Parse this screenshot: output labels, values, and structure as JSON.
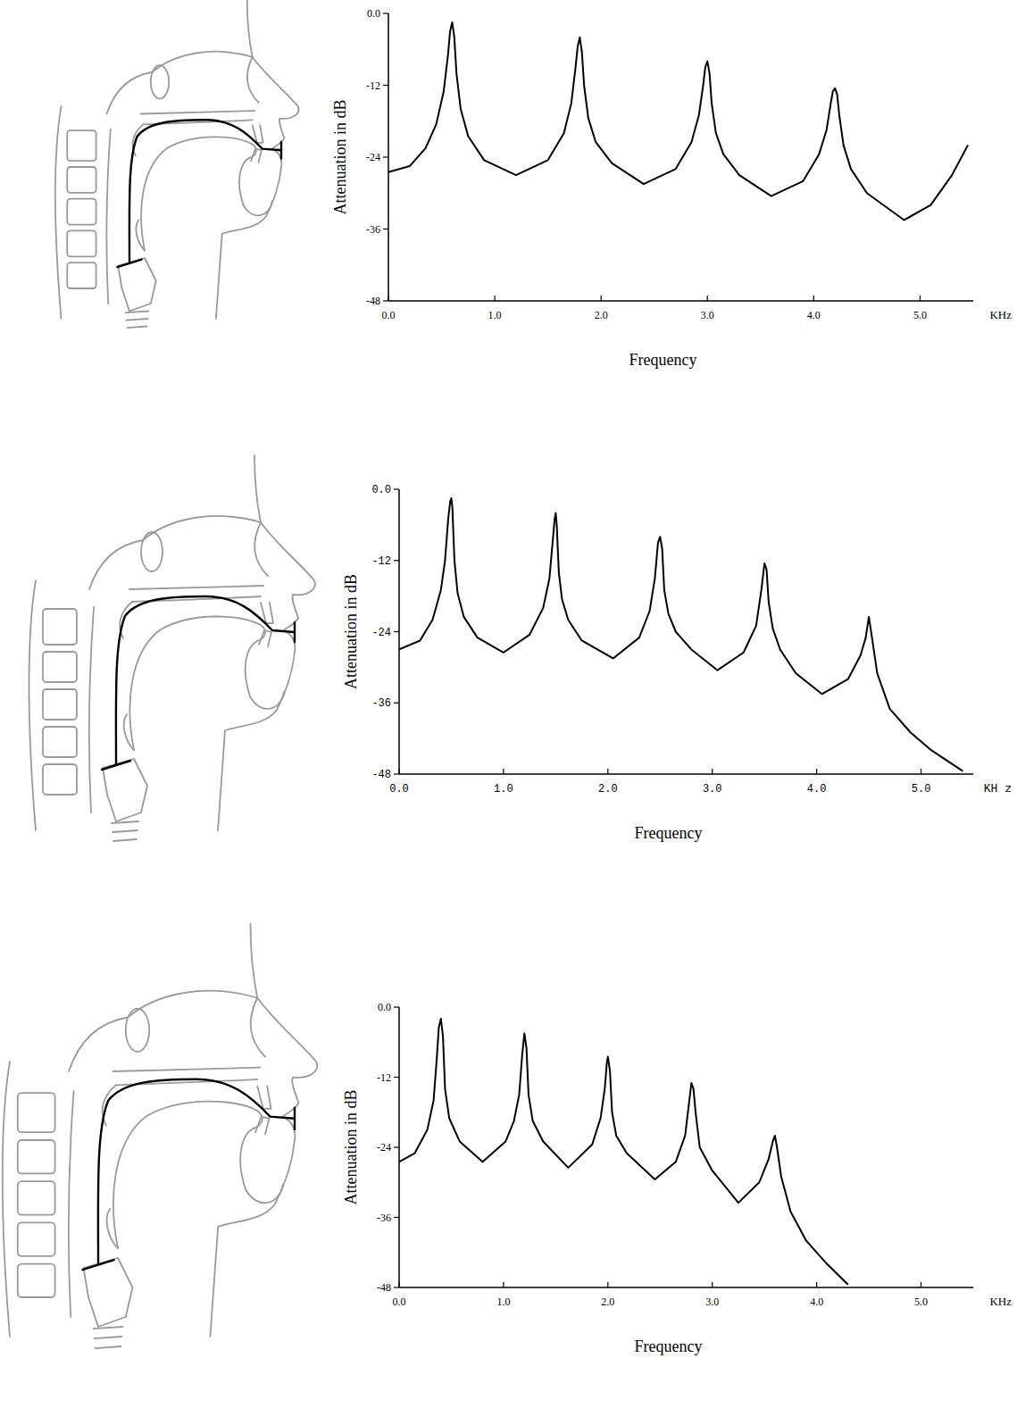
{
  "chart_data": [
    {
      "type": "line",
      "x_label": "Frequency",
      "y_label": "Attenuation in dB",
      "x_unit": "KHz",
      "xlim": [
        0,
        5.5
      ],
      "ylim": [
        -48,
        0
      ],
      "xticks": [
        {
          "value": 0,
          "label": "0.0"
        },
        {
          "value": 1,
          "label": "1.0"
        },
        {
          "value": 2,
          "label": "2.0"
        },
        {
          "value": 3,
          "label": "3.0"
        },
        {
          "value": 4,
          "label": "4.0"
        },
        {
          "value": 5,
          "label": "5.0"
        }
      ],
      "yticks": [
        {
          "value": 0,
          "label": "0.0"
        },
        -12,
        -24,
        -36,
        -48
      ],
      "x": [
        0,
        0.2,
        0.35,
        0.45,
        0.52,
        0.56,
        0.58,
        0.6,
        0.62,
        0.64,
        0.68,
        0.75,
        0.9,
        1.2,
        1.5,
        1.65,
        1.72,
        1.76,
        1.78,
        1.8,
        1.82,
        1.84,
        1.88,
        1.95,
        2.1,
        2.4,
        2.7,
        2.85,
        2.92,
        2.96,
        2.98,
        3.0,
        3.02,
        3.04,
        3.08,
        3.15,
        3.3,
        3.6,
        3.9,
        4.05,
        4.12,
        4.16,
        4.18,
        4.2,
        4.22,
        4.24,
        4.28,
        4.35,
        4.5,
        4.85,
        5.1,
        5.3,
        5.45
      ],
      "series": [
        {
          "color": "#000000",
          "values": [
            -26.5,
            -25.5,
            -22.5,
            -18.5,
            -13,
            -7,
            -3,
            -1.5,
            -4,
            -10,
            -16,
            -20.5,
            -24.5,
            -27,
            -24.5,
            -20,
            -15,
            -9,
            -5.5,
            -4,
            -6.5,
            -12,
            -17.5,
            -21.5,
            -25,
            -28.5,
            -26,
            -21.5,
            -17,
            -12,
            -9,
            -8,
            -10,
            -15,
            -20,
            -23.5,
            -27,
            -30.5,
            -28,
            -23.5,
            -19.5,
            -15,
            -13,
            -12.5,
            -13.5,
            -17,
            -22,
            -26,
            -30,
            -34.5,
            -32,
            -27,
            -22
          ]
        }
      ]
    },
    {
      "type": "line",
      "x_label": "Frequency",
      "y_label": "Attenuation in dB",
      "x_unit": "KH z",
      "xlim": [
        0,
        5.5
      ],
      "ylim": [
        -48,
        0
      ],
      "xticks": [
        {
          "value": 0,
          "label": "0.0"
        },
        {
          "value": 1,
          "label": "1.0"
        },
        {
          "value": 2,
          "label": "2.0"
        },
        {
          "value": 3,
          "label": "3.0"
        },
        {
          "value": 4,
          "label": "4.0"
        },
        {
          "value": 5,
          "label": "5.0"
        }
      ],
      "yticks": [
        {
          "value": 0,
          "label": "0.0"
        },
        -12,
        -24,
        -36,
        -48
      ],
      "x": [
        0,
        0.2,
        0.32,
        0.4,
        0.44,
        0.47,
        0.49,
        0.5,
        0.51,
        0.53,
        0.56,
        0.62,
        0.75,
        1.0,
        1.25,
        1.38,
        1.44,
        1.47,
        1.49,
        1.5,
        1.51,
        1.53,
        1.56,
        1.62,
        1.75,
        2.05,
        2.3,
        2.4,
        2.45,
        2.48,
        2.5,
        2.52,
        2.54,
        2.58,
        2.65,
        2.8,
        3.05,
        3.3,
        3.42,
        3.47,
        3.5,
        3.52,
        3.54,
        3.58,
        3.65,
        3.8,
        4.05,
        4.3,
        4.42,
        4.47,
        4.5,
        4.53,
        4.58,
        4.7,
        4.9,
        5.1,
        5.4
      ],
      "series": [
        {
          "color": "#000000",
          "values": [
            -27,
            -25.5,
            -22,
            -17,
            -12,
            -5,
            -2,
            -1.5,
            -3,
            -12,
            -17.5,
            -21.5,
            -25,
            -27.5,
            -24.5,
            -20,
            -15,
            -9,
            -5,
            -4,
            -6,
            -14,
            -18.5,
            -22,
            -25.5,
            -28.5,
            -25,
            -20.5,
            -15,
            -9,
            -8,
            -10,
            -17,
            -21,
            -24,
            -27,
            -30.5,
            -27.5,
            -23,
            -17,
            -12.5,
            -13.5,
            -19,
            -23.5,
            -27,
            -31,
            -34.5,
            -32,
            -28,
            -25,
            -21.5,
            -25,
            -31,
            -37,
            -41,
            -44,
            -47.5
          ]
        }
      ]
    },
    {
      "type": "line",
      "x_label": "Frequency",
      "y_label": "Attenuation in dB",
      "x_unit": "KHz",
      "xlim": [
        0,
        5.5
      ],
      "ylim": [
        -48,
        0
      ],
      "xticks": [
        {
          "value": 0,
          "label": "0.0"
        },
        {
          "value": 1,
          "label": "1.0"
        },
        {
          "value": 2,
          "label": "2.0"
        },
        {
          "value": 3,
          "label": "3.0"
        },
        {
          "value": 4,
          "label": "4.0"
        },
        {
          "value": 5,
          "label": "5.0"
        }
      ],
      "yticks": [
        {
          "value": 0,
          "label": "0.0"
        },
        -12,
        -24,
        -36,
        -48
      ],
      "x": [
        0,
        0.15,
        0.27,
        0.33,
        0.36,
        0.38,
        0.4,
        0.42,
        0.44,
        0.48,
        0.58,
        0.8,
        1.02,
        1.1,
        1.15,
        1.18,
        1.2,
        1.22,
        1.24,
        1.28,
        1.38,
        1.62,
        1.85,
        1.93,
        1.97,
        1.99,
        2.0,
        2.02,
        2.04,
        2.08,
        2.18,
        2.45,
        2.65,
        2.74,
        2.78,
        2.8,
        2.82,
        2.84,
        2.88,
        3.0,
        3.25,
        3.45,
        3.54,
        3.58,
        3.6,
        3.62,
        3.66,
        3.75,
        3.9,
        4.1,
        4.3
      ],
      "series": [
        {
          "color": "#000000",
          "values": [
            -26.5,
            -25,
            -21,
            -16,
            -9,
            -3.5,
            -2,
            -5,
            -14,
            -19,
            -23,
            -26.5,
            -23,
            -19.5,
            -15,
            -8,
            -4.5,
            -7,
            -15,
            -19.5,
            -23,
            -27.5,
            -23.5,
            -19,
            -14,
            -9.5,
            -8.5,
            -11,
            -18,
            -22,
            -25,
            -29.5,
            -26.5,
            -22,
            -16,
            -13,
            -14,
            -18,
            -24,
            -28,
            -33.5,
            -30,
            -26,
            -23,
            -22,
            -24,
            -29,
            -35,
            -40,
            -44,
            -47.5
          ]
        }
      ]
    }
  ]
}
